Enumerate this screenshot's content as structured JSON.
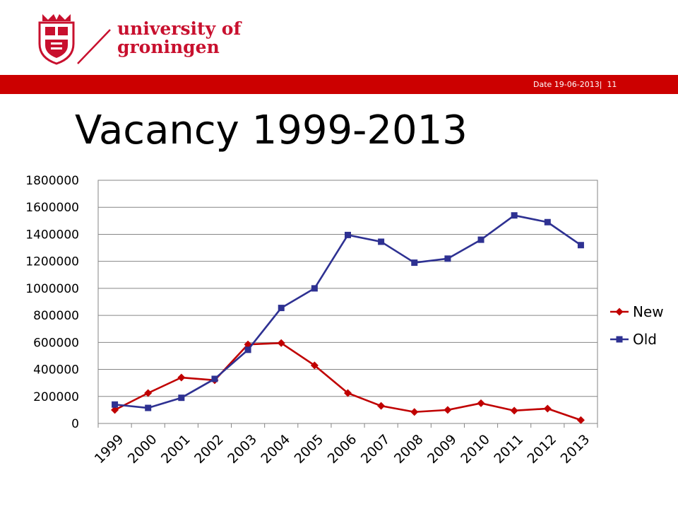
{
  "header": {
    "university_line1": "university of",
    "university_line2": "groningen",
    "date_text": "Date 19-06-2013",
    "separator": "|",
    "page_number": "11",
    "band_color": "#cc0000",
    "text_color": "#c8102e"
  },
  "slide": {
    "title": "Vacancy 1999-2013"
  },
  "chart_data": {
    "type": "line",
    "title": "",
    "xlabel": "",
    "ylabel": "",
    "categories": [
      "1999",
      "2000",
      "2001",
      "2002",
      "2003",
      "2004",
      "2005",
      "2006",
      "2007",
      "2008",
      "2009",
      "2010",
      "2011",
      "2012",
      "2013"
    ],
    "ylim": [
      0,
      1800000
    ],
    "yticks": [
      0,
      200000,
      400000,
      600000,
      800000,
      1000000,
      1200000,
      1400000,
      1600000,
      1800000
    ],
    "grid": true,
    "legend_position": "right",
    "series": [
      {
        "name": "New",
        "color": "#c00000",
        "marker": "diamond",
        "values": [
          100000,
          225000,
          340000,
          320000,
          585000,
          595000,
          430000,
          225000,
          130000,
          85000,
          100000,
          150000,
          95000,
          110000,
          25000
        ]
      },
      {
        "name": "Old",
        "color": "#2e3192",
        "marker": "square",
        "values": [
          140000,
          115000,
          190000,
          330000,
          545000,
          855000,
          1000000,
          1395000,
          1345000,
          1190000,
          1220000,
          1360000,
          1540000,
          1490000,
          1320000
        ]
      }
    ]
  }
}
